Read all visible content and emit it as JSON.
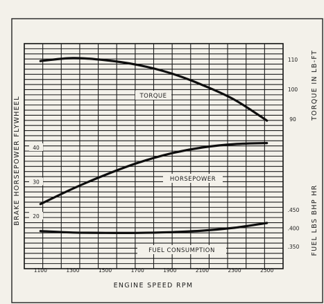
{
  "chart_data": {
    "type": "line",
    "title": "",
    "x": {
      "label": "ENGINE SPEED  RPM",
      "range": [
        1000,
        2600
      ],
      "ticks": [
        1100,
        1300,
        1500,
        1700,
        1900,
        2100,
        2300,
        2500
      ]
    },
    "y_left": {
      "label": "BRAKE HORSEPOWER  FLYWHEEL",
      "ticks": [
        "20",
        "30",
        "40"
      ]
    },
    "y_right_torque": {
      "label": "TORQUE  IN  LB-FT",
      "ticks": [
        "90",
        "100",
        "110"
      ]
    },
    "y_right_fuel": {
      "label": "FUEL  LBS BHP HR",
      "ticks": [
        ".350",
        ".400",
        ".450"
      ]
    },
    "series": [
      {
        "name": "TORQUE",
        "axis": "torque",
        "x": [
          1100,
          1300,
          1500,
          1700,
          1900,
          2100,
          2300,
          2500
        ],
        "y": [
          109.5,
          110.5,
          109.8,
          108.2,
          105.5,
          101.5,
          96.5,
          89.5
        ]
      },
      {
        "name": "HORSEPOWER",
        "axis": "hp",
        "x": [
          1100,
          1300,
          1500,
          1700,
          1900,
          2100,
          2300,
          2500
        ],
        "y": [
          23.5,
          28,
          32,
          35.5,
          38.2,
          40,
          41,
          41.3
        ]
      },
      {
        "name": "FUEL CONSUMPTION",
        "axis": "fuel",
        "x": [
          1100,
          1300,
          1500,
          1700,
          1900,
          2100,
          2300,
          2500
        ],
        "y": [
          0.392,
          0.388,
          0.387,
          0.387,
          0.389,
          0.393,
          0.401,
          0.414
        ]
      }
    ]
  }
}
